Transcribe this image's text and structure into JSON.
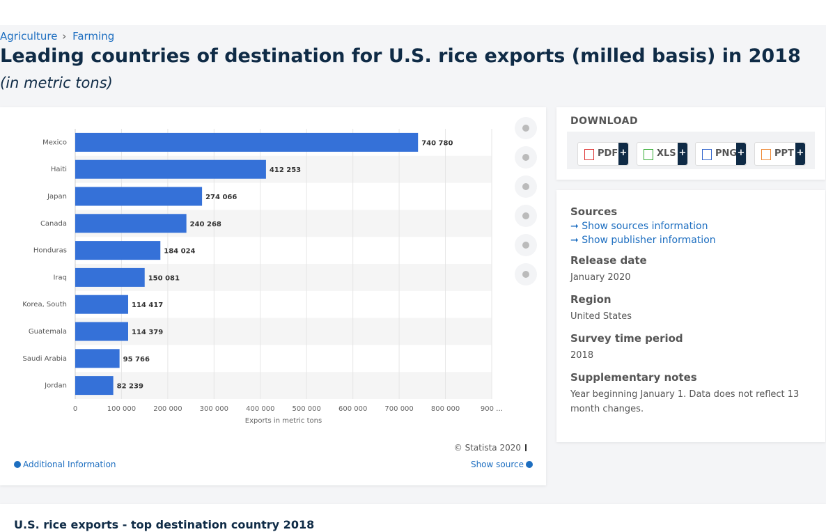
{
  "breadcrumb": {
    "items": [
      "Agriculture",
      "Farming"
    ],
    "separator": "›"
  },
  "header": {
    "title": "Leading countries of destination for U.S. rice exports (milled basis) in 2018",
    "subtitle": "(in metric tons)"
  },
  "chart_data": {
    "type": "hbar",
    "categories": [
      "Mexico",
      "Haiti",
      "Japan",
      "Canada",
      "Honduras",
      "Iraq",
      "Korea, South",
      "Guatemala",
      "Saudi Arabia",
      "Jordan"
    ],
    "values": [
      740780,
      412253,
      274066,
      240268,
      184024,
      150081,
      114417,
      114379,
      95766,
      82239
    ],
    "value_labels": [
      "740 780",
      "412 253",
      "274 066",
      "240 268",
      "184 024",
      "150 081",
      "114 417",
      "114 379",
      "95 766",
      "82 239"
    ],
    "color": "#3571d8",
    "x_label": "Exports in metric tons",
    "xlim": [
      0,
      900000
    ],
    "xticks": [
      0,
      {
        "value": 100000,
        "label": "100 000"
      },
      {
        "value": 200000,
        "label": "200 000"
      },
      {
        "value": 300000,
        "label": "300 000"
      },
      {
        "value": 400000,
        "label": "400 000"
      },
      {
        "value": 500000,
        "label": "500 000"
      },
      {
        "value": 600000,
        "label": "600 000"
      },
      {
        "value": 700000,
        "label": "700 000"
      },
      {
        "value": 800000,
        "label": "800 000"
      },
      {
        "value": 900000,
        "label": "900 …"
      }
    ],
    "grid": true
  },
  "chart_footer": {
    "copyright": "© Statista 2020",
    "additional": "Additional Information",
    "source": "Show source"
  },
  "download": {
    "title": "DOWNLOAD",
    "buttons": [
      {
        "label": "PDF",
        "plus": "+"
      },
      {
        "label": "XLS",
        "plus": "+"
      },
      {
        "label": "PNG",
        "plus": "+"
      },
      {
        "label": "PPT",
        "plus": "+"
      }
    ]
  },
  "info": {
    "sources_title": "Sources",
    "show_sources": "Show sources information",
    "show_publisher": "Show publisher information",
    "items": [
      {
        "title": "Release date",
        "text": "January 2020"
      },
      {
        "title": "Region",
        "text": "United States"
      },
      {
        "title": "Survey time period",
        "text": "2018"
      },
      {
        "title": "Supplementary notes",
        "text": "Year beginning January 1. Data does not reflect 13 month changes."
      }
    ]
  },
  "related": {
    "title": "U.S. rice exports - top destination country 2018"
  }
}
